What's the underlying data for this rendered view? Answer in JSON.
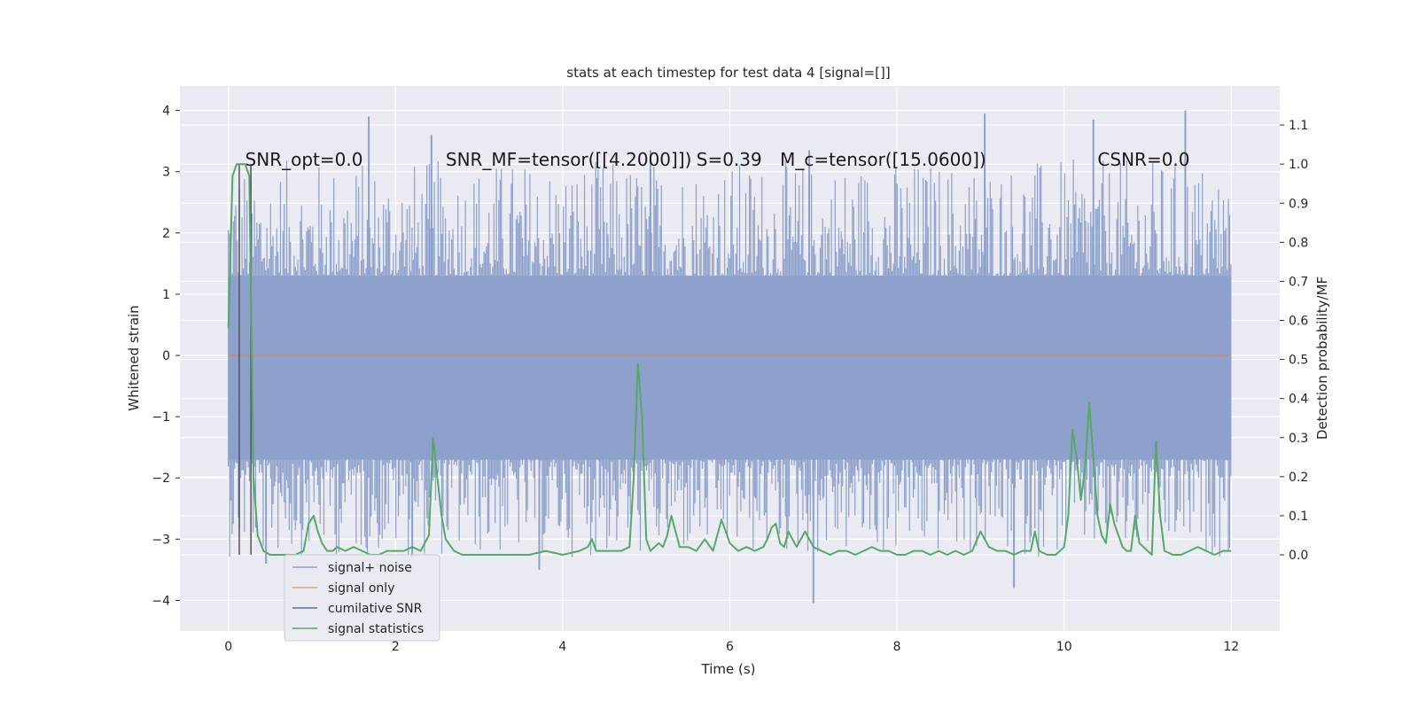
{
  "chart_data": {
    "type": "line",
    "title": "stats at each timestep for test data 4 [signal=[]]",
    "xlabel": "Time (s)",
    "ylabel": "Whitened strain",
    "y2label": "Detection probability/MF",
    "xlim": [
      -0.58,
      12.58
    ],
    "ylim": [
      -4.5,
      4.4
    ],
    "y2lim": [
      -0.195,
      1.2
    ],
    "xticks": [
      0,
      2,
      4,
      6,
      8,
      10,
      12
    ],
    "xtick_labels": [
      "0",
      "2",
      "4",
      "6",
      "8",
      "10",
      "12"
    ],
    "yticks": [
      4,
      3,
      2,
      1,
      0,
      -1,
      -2,
      -3,
      -4
    ],
    "ytick_labels": [
      "4",
      "3",
      "2",
      "1",
      "0",
      "−1",
      "−2",
      "−3",
      "−4"
    ],
    "y2ticks": [
      1.1,
      1.0,
      0.9,
      0.8,
      0.7,
      0.6,
      0.5,
      0.4,
      0.3,
      0.2,
      0.1,
      0.0
    ],
    "y2tick_labels": [
      "1.1",
      "1.0",
      "0.9",
      "0.8",
      "0.7",
      "0.6",
      "0.5",
      "0.4",
      "0.3",
      "0.2",
      "0.1",
      "0.0"
    ],
    "grid": true,
    "legend_position": "bottom-left",
    "annotations": [
      {
        "text": "SNR_opt=0.0",
        "x": 0.2,
        "y": 3.1
      },
      {
        "text": "SNR_MF=tensor([[4.2000]])",
        "x": 2.6,
        "y": 3.1
      },
      {
        "text": "S=0.39",
        "x": 5.6,
        "y": 3.1
      },
      {
        "text": "M_c=tensor([15.0600])",
        "x": 6.6,
        "y": 3.1
      },
      {
        "text": "CSNR=0.0",
        "x": 10.4,
        "y": 3.1
      }
    ],
    "series": [
      {
        "name": "signal+ noise",
        "color": "#8da0cb",
        "style": "noise-band",
        "x_range": [
          0,
          12
        ],
        "typical_min": -1.7,
        "typical_max": 1.3,
        "extreme_min": -4.1,
        "extreme_max": 4.0,
        "spikes": [
          {
            "x": 1.68,
            "y": 3.9
          },
          {
            "x": 2.43,
            "y": 3.6
          },
          {
            "x": 9.05,
            "y": 3.95
          },
          {
            "x": 10.35,
            "y": 3.85
          },
          {
            "x": 11.45,
            "y": 4.0
          },
          {
            "x": 7.0,
            "y": -4.05
          },
          {
            "x": 9.4,
            "y": -3.8
          },
          {
            "x": 3.72,
            "y": -3.5
          },
          {
            "x": 0.45,
            "y": -3.4
          },
          {
            "x": 2.2,
            "y": -3.3
          },
          {
            "x": 5.05,
            "y": 3.35
          },
          {
            "x": 6.95,
            "y": 3.35
          }
        ]
      },
      {
        "name": "signal only",
        "color": "#dd8452",
        "x": [
          0,
          12
        ],
        "y": [
          0,
          0
        ]
      },
      {
        "name": "cumilative SNR",
        "color": "#4c72b0",
        "x": [],
        "y": []
      },
      {
        "name": "signal statistics",
        "color": "#55a868",
        "axis": "right",
        "x": [
          0.0,
          0.05,
          0.1,
          0.15,
          0.2,
          0.25,
          0.3,
          0.35,
          0.42,
          0.5,
          0.6,
          0.7,
          0.8,
          0.9,
          0.96,
          1.02,
          1.07,
          1.12,
          1.18,
          1.25,
          1.3,
          1.4,
          1.5,
          1.6,
          1.7,
          1.8,
          1.9,
          2.0,
          2.1,
          2.2,
          2.3,
          2.4,
          2.45,
          2.5,
          2.55,
          2.6,
          2.7,
          2.8,
          2.9,
          3.0,
          3.2,
          3.4,
          3.6,
          3.8,
          4.0,
          4.2,
          4.3,
          4.35,
          4.4,
          4.5,
          4.6,
          4.7,
          4.8,
          4.85,
          4.9,
          4.95,
          5.0,
          5.05,
          5.1,
          5.15,
          5.2,
          5.25,
          5.3,
          5.4,
          5.5,
          5.6,
          5.7,
          5.8,
          5.9,
          6.0,
          6.1,
          6.2,
          6.3,
          6.4,
          6.45,
          6.5,
          6.55,
          6.6,
          6.65,
          6.7,
          6.8,
          6.9,
          6.95,
          7.0,
          7.1,
          7.2,
          7.3,
          7.4,
          7.5,
          7.6,
          7.7,
          7.8,
          7.9,
          8.0,
          8.1,
          8.2,
          8.3,
          8.4,
          8.5,
          8.6,
          8.7,
          8.8,
          8.9,
          9.0,
          9.1,
          9.2,
          9.3,
          9.4,
          9.5,
          9.6,
          9.65,
          9.7,
          9.8,
          9.9,
          10.0,
          10.05,
          10.1,
          10.15,
          10.2,
          10.25,
          10.3,
          10.35,
          10.4,
          10.45,
          10.5,
          10.55,
          10.6,
          10.7,
          10.75,
          10.8,
          10.85,
          10.9,
          11.0,
          11.05,
          11.1,
          11.15,
          11.2,
          11.3,
          11.4,
          11.5,
          11.6,
          11.7,
          11.8,
          11.9,
          12.0
        ],
        "y": [
          0.58,
          0.97,
          1.0,
          1.0,
          1.0,
          0.97,
          0.2,
          0.05,
          0.01,
          0.0,
          0.0,
          0.0,
          0.0,
          0.01,
          0.08,
          0.1,
          0.06,
          0.03,
          0.01,
          0.01,
          0.02,
          0.01,
          0.02,
          0.01,
          0.0,
          0.0,
          0.01,
          0.01,
          0.01,
          0.02,
          0.01,
          0.05,
          0.3,
          0.2,
          0.1,
          0.04,
          0.01,
          0.0,
          0.0,
          0.0,
          0.0,
          0.0,
          0.0,
          0.01,
          0.0,
          0.01,
          0.02,
          0.04,
          0.01,
          0.01,
          0.01,
          0.01,
          0.02,
          0.2,
          0.49,
          0.35,
          0.04,
          0.01,
          0.02,
          0.03,
          0.02,
          0.05,
          0.1,
          0.02,
          0.02,
          0.01,
          0.04,
          0.01,
          0.09,
          0.03,
          0.01,
          0.02,
          0.01,
          0.02,
          0.04,
          0.07,
          0.08,
          0.03,
          0.02,
          0.06,
          0.02,
          0.06,
          0.04,
          0.02,
          0.01,
          0.0,
          0.01,
          0.01,
          0.0,
          0.01,
          0.02,
          0.01,
          0.01,
          0.0,
          0.0,
          0.01,
          0.01,
          0.0,
          0.01,
          0.0,
          0.01,
          0.0,
          0.01,
          0.06,
          0.02,
          0.01,
          0.01,
          0.0,
          0.01,
          0.01,
          0.06,
          0.01,
          0.0,
          0.0,
          0.02,
          0.1,
          0.32,
          0.25,
          0.14,
          0.22,
          0.39,
          0.25,
          0.1,
          0.05,
          0.03,
          0.13,
          0.08,
          0.02,
          0.01,
          0.01,
          0.1,
          0.03,
          0.01,
          0.0,
          0.29,
          0.1,
          0.01,
          0.0,
          0.0,
          0.01,
          0.02,
          0.01,
          0.0,
          0.01,
          0.01
        ]
      }
    ],
    "vertical_lines": [
      {
        "x": 0.13,
        "color": "#555555"
      },
      {
        "x": 0.27,
        "color": "#555555"
      }
    ]
  },
  "legend": {
    "items": [
      "signal+ noise",
      "signal only",
      "cumilative SNR",
      "signal statistics"
    ]
  }
}
